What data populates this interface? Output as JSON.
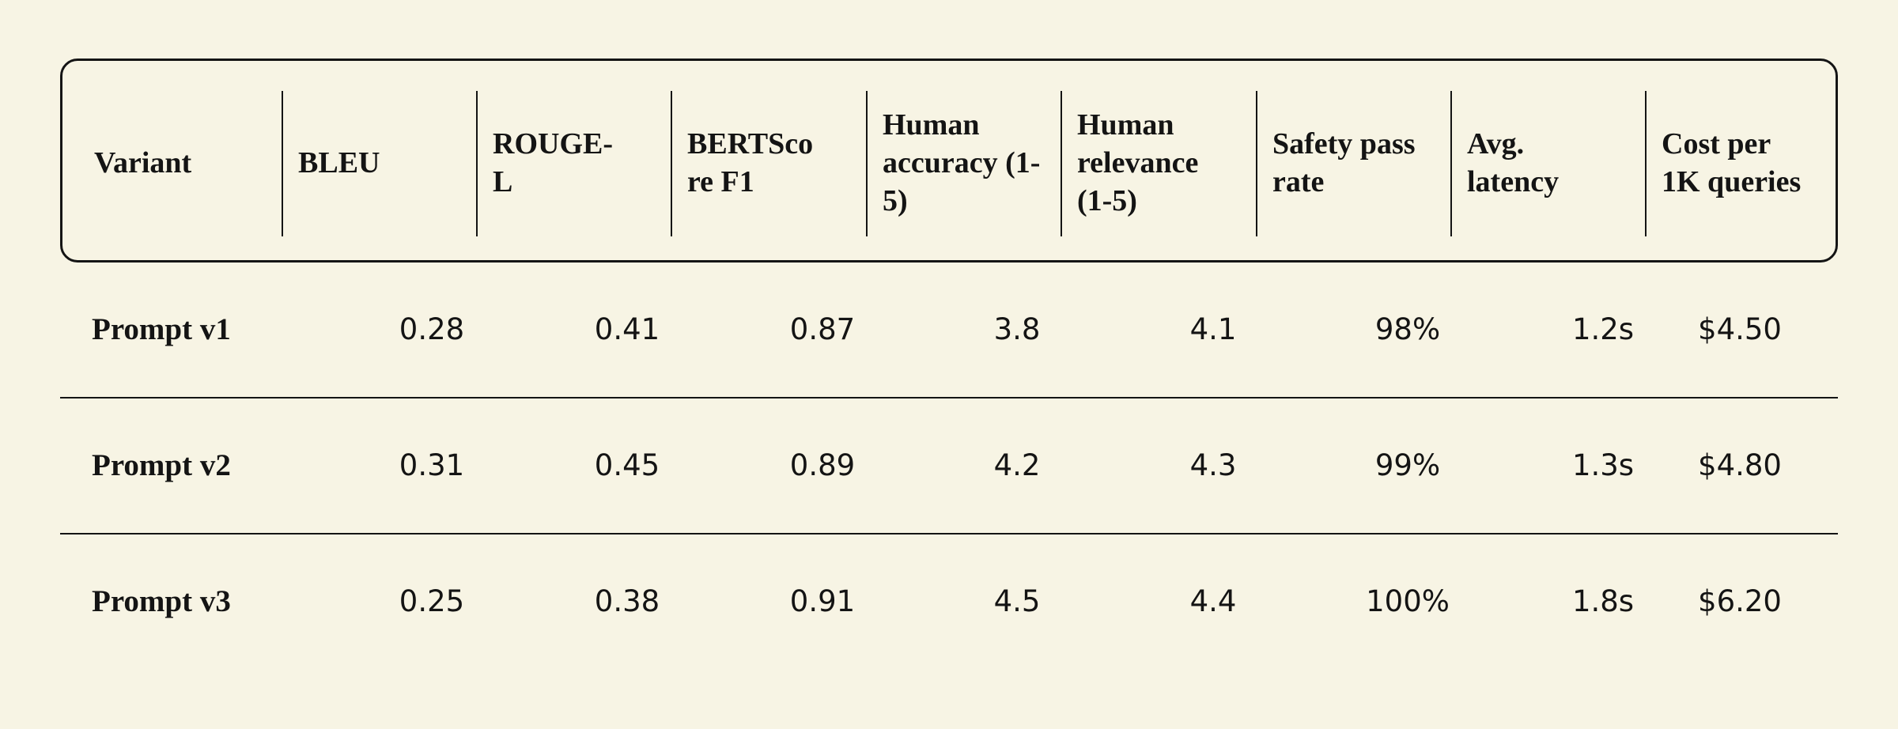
{
  "table": {
    "headers": [
      "Variant",
      "BLEU",
      "ROUGE-L",
      "BERTScore F1",
      "Human accuracy (1-5)",
      "Human relevance (1-5)",
      "Safety pass rate",
      "Avg. latency",
      "Cost per 1K queries"
    ],
    "rows": [
      [
        "Prompt v1",
        "0.28",
        "0.41",
        "0.87",
        "3.8",
        "4.1",
        "98%",
        "1.2s",
        "$4.50"
      ],
      [
        "Prompt v2",
        "0.31",
        "0.45",
        "0.89",
        "4.2",
        "4.3",
        "99%",
        "1.3s",
        "$4.80"
      ],
      [
        "Prompt v3",
        "0.25",
        "0.38",
        "0.91",
        "4.5",
        "4.4",
        "100%",
        "1.8s",
        "$6.20"
      ]
    ]
  }
}
